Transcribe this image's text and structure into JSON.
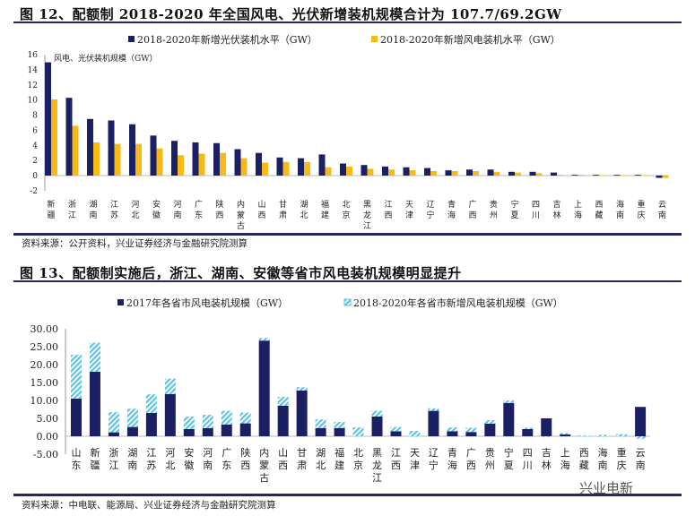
{
  "colors": {
    "navy": "#1b1f63",
    "yellow": "#f6b915",
    "hatch": "#5fc3e4",
    "rule": "#23285e"
  },
  "watermark": "兴业电新",
  "chart_data": [
    {
      "type": "bar",
      "title": "图 12、配额制 2018-2020 年全国风电、光伏新增装机规模合计为 107.7/69.2GW",
      "ylabel": "风电、光伏装机规模（GW）",
      "ylim": [
        -2,
        16
      ],
      "yticks": [
        16,
        14,
        12,
        10,
        8,
        6,
        4,
        2,
        0,
        -2
      ],
      "legend_position": "top",
      "categories": [
        "新疆",
        "浙江",
        "湖南",
        "江苏",
        "河北",
        "安徽",
        "河南",
        "广东",
        "陕西",
        "内蒙古",
        "山西",
        "甘肃",
        "湖北",
        "福建",
        "北京",
        "黑龙江",
        "江西",
        "天津",
        "辽宁",
        "青海",
        "广西",
        "贵州",
        "宁夏",
        "四川",
        "吉林",
        "上海",
        "西藏",
        "海南",
        "重庆",
        "云南"
      ],
      "series": [
        {
          "name": "2018-2020年新增光伏装机水平（GW）",
          "values": [
            15,
            10.3,
            7.5,
            7.3,
            6.8,
            5.3,
            4.6,
            4.4,
            4.3,
            3.5,
            3.0,
            2.4,
            2.3,
            2.8,
            1.6,
            1.4,
            1.2,
            1.1,
            1.0,
            0.7,
            0.8,
            0.8,
            0.5,
            0.5,
            0.4,
            0.1,
            0.1,
            0.1,
            0.1,
            -0.3
          ]
        },
        {
          "name": "2018-2020年新增风电装机水平（GW）",
          "values": [
            10.1,
            6.6,
            4.4,
            4.2,
            4.2,
            3.6,
            2.7,
            2.9,
            3.0,
            2.3,
            1.7,
            1.8,
            1.8,
            1.1,
            1.2,
            0.9,
            0.8,
            0.7,
            0.6,
            0.6,
            0.6,
            0.5,
            0.4,
            0.3,
            0.1,
            0.1,
            0,
            0,
            0,
            -0.3
          ]
        }
      ],
      "source": "资料来源：公开资料，兴业证券经济与金融研究院测算"
    },
    {
      "type": "stacked-bar",
      "title": "图 13、配额制实施后，浙江、湖南、安徽等省市风电装机规模明显提升",
      "ylim": [
        -5,
        30
      ],
      "yticks": [
        "30.00",
        "25.00",
        "20.00",
        "15.00",
        "10.00",
        "5.00",
        "0.00",
        "-5.00"
      ],
      "legend_position": "top",
      "categories": [
        "山东",
        "新疆",
        "浙江",
        "湖南",
        "江苏",
        "河北",
        "安徽",
        "河南",
        "广东",
        "陕西",
        "内蒙古",
        "山西",
        "甘肃",
        "湖北",
        "福建",
        "北京",
        "黑龙江",
        "江西",
        "天津",
        "辽宁",
        "青海",
        "广西",
        "贵州",
        "宁夏",
        "四川",
        "吉林",
        "上海",
        "西藏",
        "海南",
        "重庆",
        "云南"
      ],
      "series": [
        {
          "name": "2017年各省市风电装机规模（GW）",
          "values": [
            10.5,
            18,
            1.1,
            2.6,
            6.5,
            11.8,
            2.0,
            2.3,
            3.3,
            3.6,
            26.7,
            8.5,
            12.8,
            2.3,
            2.3,
            0,
            5.5,
            1.4,
            0,
            7.1,
            1.4,
            1.2,
            3.5,
            9.3,
            2.0,
            5.0,
            0.5,
            0,
            0,
            0,
            8.2
          ]
        },
        {
          "name": "2018-2020年各省市新增风电装机规模（GW）",
          "values": [
            12.3,
            8.1,
            5.6,
            5.1,
            5.2,
            4.3,
            3.5,
            3.7,
            3.8,
            3.0,
            0.7,
            2.5,
            0.9,
            2.4,
            1.7,
            2.5,
            1.6,
            1.2,
            1.5,
            0.7,
            1.1,
            1.2,
            1.0,
            0.7,
            0.4,
            -0.2,
            0.4,
            0.2,
            0.4,
            0.6,
            -0.7
          ]
        }
      ],
      "source": "资料来源：中电联、能源局、兴业证券经济与金融研究院测算"
    }
  ]
}
